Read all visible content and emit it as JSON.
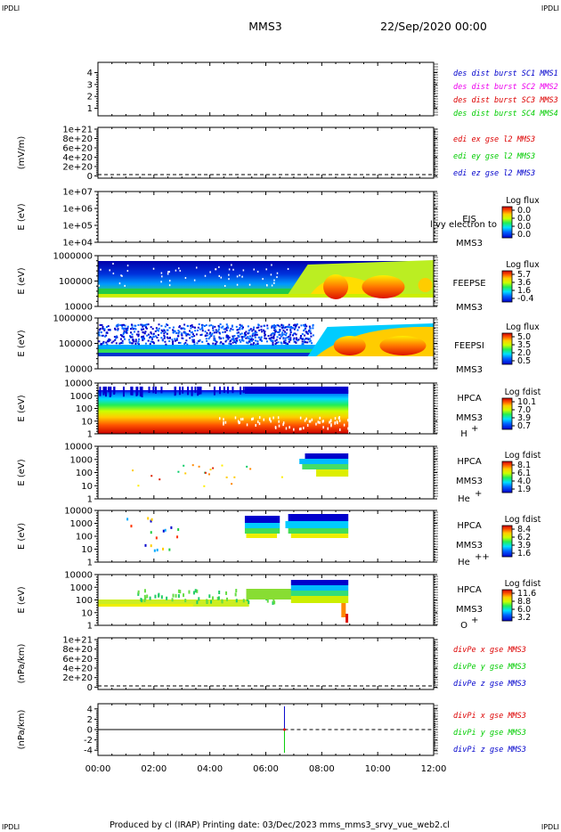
{
  "header": {
    "corner_tl": "IPDLI",
    "corner_tr": "IPDLI",
    "corner_bl": "IPDLI",
    "corner_br": "IPDLI",
    "title": "MMS3",
    "date": "22/Sep/2020 00:00"
  },
  "footer": {
    "text": "Produced by cl (IRAP)    Printing date: 03/Dec/2023    mms_mms3_srvy_vue_web2.cl"
  },
  "colors": {
    "blue": "#0000cc",
    "magenta": "#ee00ee",
    "red": "#dd0000",
    "green": "#00cc00"
  },
  "chart_data": [
    {
      "type": "line",
      "id": "availability",
      "xlim": [
        "00:00",
        "12:00"
      ],
      "ylim": [
        0.5,
        4.5
      ],
      "yticks": [
        "1",
        "2",
        "3",
        "4"
      ],
      "ylabel": "",
      "legend": [
        {
          "text": "des dist burst SC1 MMS1",
          "color": "#0000cc"
        },
        {
          "text": "des dist burst SC2 MMS2",
          "color": "#ee00ee"
        },
        {
          "text": "des dist burst SC3 MMS3",
          "color": "#dd0000"
        },
        {
          "text": "des dist burst SC4 MMS4",
          "color": "#00cc00"
        }
      ],
      "series": []
    },
    {
      "type": "line",
      "id": "edi-efield",
      "ylabel": "(mV/m)",
      "yticks": [
        "1e+21",
        "8e+20",
        "6e+20",
        "4e+20",
        "2e+20",
        "0"
      ],
      "legend": [
        {
          "text": "edi ex gse l2 MMS3",
          "color": "#dd0000"
        },
        {
          "text": "edi ey gse l2 MMS3",
          "color": "#00cc00"
        },
        {
          "text": "edi ez gse l2 MMS3",
          "color": "#0000cc"
        }
      ],
      "zero_line": "dashed"
    },
    {
      "type": "heatmap",
      "id": "eis",
      "ylabel": "E (eV)",
      "yscale": "log",
      "yticks": [
        "1e+07",
        "1e+06",
        "1e+05",
        "1e+04"
      ],
      "side": [
        "EIS",
        "MMS3"
      ],
      "overlay_text": "l  vy electron to",
      "colorbar": {
        "title": "Log flux",
        "values": [
          "0.0",
          "0.0",
          "0.0",
          "0.0"
        ]
      }
    },
    {
      "type": "heatmap",
      "id": "feeps-e",
      "ylabel": "E (eV)",
      "yscale": "log",
      "yticks": [
        "1000000",
        "100000",
        "10000"
      ],
      "side": [
        "FEEPSE",
        "MMS3"
      ],
      "colorbar": {
        "title": "Log flux",
        "values": [
          "5.7",
          "3.6",
          "1.6",
          "-0.4"
        ]
      }
    },
    {
      "type": "heatmap",
      "id": "feeps-i",
      "ylabel": "E (eV)",
      "yscale": "log",
      "yticks": [
        "1000000",
        "100000",
        "10000"
      ],
      "side": [
        "FEEPSI",
        "MMS3"
      ],
      "colorbar": {
        "title": "Log flux",
        "values": [
          "5.0",
          "3.5",
          "2.0",
          "0.5"
        ]
      }
    },
    {
      "type": "heatmap",
      "id": "hpca-h",
      "ylabel": "E (eV)",
      "yscale": "log",
      "yticks": [
        "10000",
        "1000",
        "100",
        "10",
        "1"
      ],
      "side": [
        "HPCA",
        "MMS3"
      ],
      "species": "H",
      "species_charge": "+",
      "colorbar": {
        "title": "Log fdist",
        "values": [
          "10.1",
          "7.0",
          "3.9",
          "0.7"
        ]
      }
    },
    {
      "type": "heatmap",
      "id": "hpca-he",
      "ylabel": "E (eV)",
      "yscale": "log",
      "yticks": [
        "10000",
        "1000",
        "100",
        "10",
        "1"
      ],
      "side": [
        "HPCA",
        "MMS3"
      ],
      "species": "He",
      "species_charge": "+",
      "colorbar": {
        "title": "Log fdist",
        "values": [
          "8.1",
          "6.1",
          "4.0",
          "1.9"
        ]
      }
    },
    {
      "type": "heatmap",
      "id": "hpca-he2",
      "ylabel": "E (eV)",
      "yscale": "log",
      "yticks": [
        "10000",
        "1000",
        "100",
        "10",
        "1"
      ],
      "side": [
        "HPCA",
        "MMS3"
      ],
      "species": "He",
      "species_charge": "++",
      "colorbar": {
        "title": "Log fdist",
        "values": [
          "8.4",
          "6.2",
          "3.9",
          "1.6"
        ]
      }
    },
    {
      "type": "heatmap",
      "id": "hpca-o",
      "ylabel": "E (eV)",
      "yscale": "log",
      "yticks": [
        "10000",
        "1000",
        "100",
        "10",
        "1"
      ],
      "side": [
        "HPCA",
        "MMS3"
      ],
      "species": "O",
      "species_charge": "+",
      "colorbar": {
        "title": "Log fdist",
        "values": [
          "11.6",
          "8.8",
          "6.0",
          "3.2"
        ]
      }
    },
    {
      "type": "line",
      "id": "divpe",
      "ylabel": "(nPa/km)",
      "yticks": [
        "1e+21",
        "8e+20",
        "6e+20",
        "4e+20",
        "2e+20",
        "0"
      ],
      "legend": [
        {
          "text": "divPe x gse MMS3",
          "color": "#dd0000"
        },
        {
          "text": "divPe y gse MMS3",
          "color": "#00cc00"
        },
        {
          "text": "divPe z gse MMS3",
          "color": "#0000cc"
        }
      ],
      "zero_line": "dashed"
    },
    {
      "type": "line",
      "id": "divpi",
      "ylabel": "(nPa/km)",
      "ylim": [
        -5,
        5
      ],
      "yticks": [
        "4",
        "2",
        "0",
        "-2",
        "-4"
      ],
      "legend": [
        {
          "text": "divPi x gse MMS3",
          "color": "#dd0000"
        },
        {
          "text": "divPi y gse MMS3",
          "color": "#00cc00"
        },
        {
          "text": "divPi z gse MMS3",
          "color": "#0000cc"
        }
      ],
      "zero_line": "solid until 06:40 then dashed",
      "spike_time": "06:40",
      "series": [
        {
          "name": "divPi x gse MMS3",
          "points": [
            [
              "06:40",
              0
            ]
          ]
        },
        {
          "name": "divPi y gse MMS3",
          "points": [
            [
              "06:40",
              -4.5
            ],
            [
              "06:40",
              0
            ]
          ]
        },
        {
          "name": "divPi z gse MMS3",
          "points": [
            [
              "06:40",
              4.5
            ],
            [
              "06:40",
              0
            ]
          ]
        }
      ]
    }
  ],
  "x_axis": {
    "ticks": [
      "00:00",
      "02:00",
      "04:00",
      "06:00",
      "08:00",
      "10:00",
      "12:00"
    ],
    "range_hours": [
      0,
      12
    ]
  }
}
